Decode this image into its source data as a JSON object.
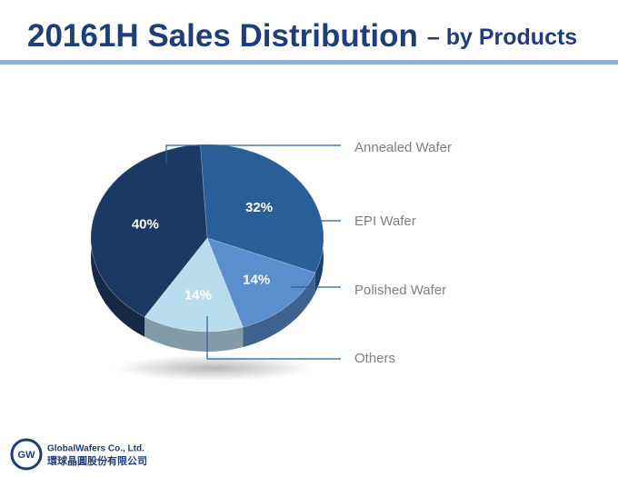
{
  "chart_data": {
    "type": "pie",
    "title": "20161H Sales Distribution",
    "subtitle": "– by Products",
    "categories": [
      "Annealed Wafer",
      "EPI Wafer",
      "Polished Wafer",
      "Others"
    ],
    "values": [
      40,
      32,
      14,
      14
    ],
    "value_labels": [
      "40%",
      "32%",
      "14%",
      "14%"
    ],
    "colors": [
      "#1b3a63",
      "#2a5e96",
      "#5a8ecf",
      "#b8ddef"
    ]
  },
  "footer": {
    "logo": "GW",
    "company": "GlobalWafers Co., Ltd.",
    "company_local": "環球晶圓股份有限公司"
  }
}
